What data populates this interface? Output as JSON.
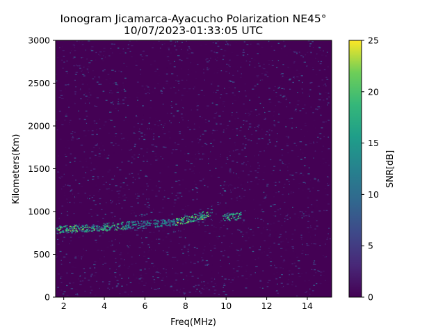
{
  "chart_data": {
    "type": "heatmap",
    "title_line1": "Ionogram Jicamarca-Ayacucho Polarization NE45°",
    "title_line2": "10/07/2023-01:33:05 UTC",
    "xlabel": "Freq(MHz)",
    "ylabel": "Kilometers(Km)",
    "colorbar_label": "SNR[dB]",
    "xlim": [
      1.6,
      15.2
    ],
    "ylim": [
      0,
      3000
    ],
    "x_ticks": [
      2,
      4,
      6,
      8,
      10,
      12,
      14
    ],
    "y_ticks": [
      0,
      500,
      1000,
      1500,
      2000,
      2500,
      3000
    ],
    "colorbar_range": [
      0,
      25
    ],
    "colorbar_ticks": [
      0,
      5,
      10,
      15,
      20,
      25
    ],
    "colormap": "viridis",
    "grid": false,
    "trace_segments": [
      {
        "freq_start": 1.6,
        "freq_end": 3.0,
        "height_start": 790,
        "height_end": 810,
        "snr": 21
      },
      {
        "freq_start": 3.0,
        "freq_end": 5.0,
        "height_start": 810,
        "height_end": 840,
        "snr": 20
      },
      {
        "freq_start": 5.0,
        "freq_end": 7.5,
        "height_start": 840,
        "height_end": 880,
        "snr": 15
      },
      {
        "freq_start": 7.5,
        "freq_end": 9.3,
        "height_start": 880,
        "height_end": 990,
        "snr": 22
      },
      {
        "freq_start": 9.8,
        "freq_end": 10.7,
        "height_start": 930,
        "height_end": 960,
        "snr": 19
      }
    ]
  }
}
